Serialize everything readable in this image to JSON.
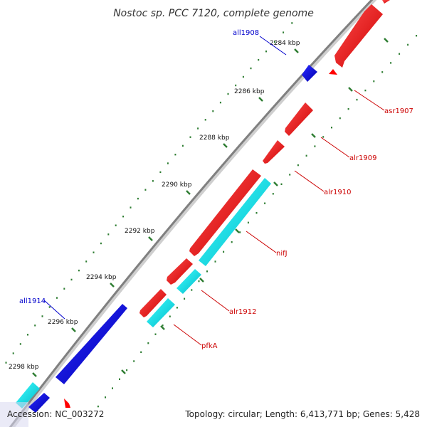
{
  "title": "Nostoc sp. PCC 7120, complete genome",
  "ticks": [
    {
      "label": "2284 kbp"
    },
    {
      "label": "2286 kbp"
    },
    {
      "label": "2288 kbp"
    },
    {
      "label": "2290 kbp"
    },
    {
      "label": "2292 kbp"
    },
    {
      "label": "2294 kbp"
    },
    {
      "label": "2296 kbp"
    },
    {
      "label": "2298 kbp"
    }
  ],
  "genes": [
    {
      "name": "all1908",
      "strand": "reverse",
      "type": "CDS",
      "color": "#0000ff"
    },
    {
      "name": "asr1907",
      "strand": "forward",
      "type": "CDS",
      "color": "#ff0000"
    },
    {
      "name": "alr1909",
      "strand": "forward",
      "type": "CDS",
      "color": "#ff0000"
    },
    {
      "name": "alr1910",
      "strand": "forward",
      "type": "CDS",
      "color": "#ff0000"
    },
    {
      "name": "nifJ",
      "strand": "forward",
      "type": "COG-highlight",
      "color": "#00ffff"
    },
    {
      "name": "alr1912",
      "strand": "forward",
      "type": "CDS",
      "color": "#ff0000"
    },
    {
      "name": "pfkA",
      "strand": "forward",
      "type": "COG-highlight",
      "color": "#00ffff"
    },
    {
      "name": "all1914",
      "strand": "reverse",
      "type": "CDS",
      "color": "#0000ff"
    }
  ],
  "colors": {
    "forward_cds": "#ff0000",
    "reverse_cds": "#0000ff",
    "highlight": "#00ffff",
    "backbone": "#808080",
    "tick_major": "#2e7d32",
    "tick_minor": "#2e7d32"
  },
  "footer": {
    "accession": "Accession: NC_003272",
    "summary": "Topology: circular; Length: 6,413,771 bp; Genes: 5,428"
  }
}
